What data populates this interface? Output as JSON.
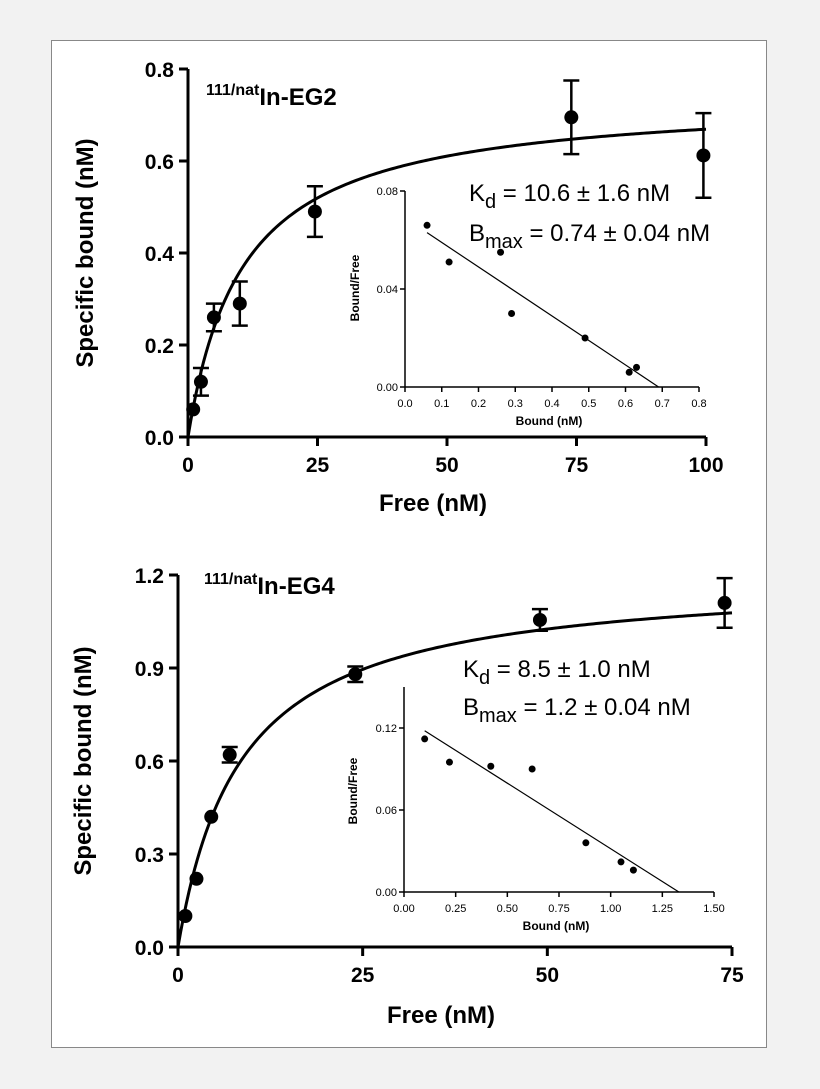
{
  "chart_data": [
    {
      "type": "scatter",
      "title": "In-EG2",
      "title_prefix": "111/nat",
      "xlabel": "Free (nM)",
      "ylabel": "Specific bound (nM)",
      "xlim": [
        0,
        100
      ],
      "ylim": [
        0,
        0.8
      ],
      "xticks": [
        "0",
        "25",
        "50",
        "75",
        "100"
      ],
      "yticks": [
        "0.0",
        "0.2",
        "0.4",
        "0.6",
        "0.8"
      ],
      "points": [
        {
          "x": 1,
          "y": 0.06,
          "err": 0.0
        },
        {
          "x": 2.5,
          "y": 0.12,
          "err": 0.03
        },
        {
          "x": 5,
          "y": 0.26,
          "err": 0.03
        },
        {
          "x": 10,
          "y": 0.29,
          "err": 0.048
        },
        {
          "x": 24.5,
          "y": 0.49,
          "err": 0.055
        },
        {
          "x": 74,
          "y": 0.695,
          "err": 0.08
        },
        {
          "x": 99.5,
          "y": 0.612,
          "err": 0.092
        }
      ],
      "fit": {
        "model": "one-site binding",
        "Kd": 10.6,
        "Bmax": 0.74
      },
      "annotation_kd": {
        "symbol": "K",
        "sub": "d",
        "text": " = 10.6 ± 1.6 nM"
      },
      "annotation_bmax": {
        "symbol": "B",
        "sub": "max",
        "text": " = 0.74 ± 0.04 nM"
      },
      "inset": {
        "type": "scatter",
        "xlabel": "Bound (nM)",
        "ylabel": "Bound/Free",
        "xlim": [
          0,
          0.8
        ],
        "ylim": [
          0,
          0.08
        ],
        "xticks": [
          "0.0",
          "0.1",
          "0.2",
          "0.3",
          "0.4",
          "0.5",
          "0.6",
          "0.7",
          "0.8"
        ],
        "yticks": [
          "0.00",
          "0.04",
          "0.08"
        ],
        "points": [
          {
            "x": 0.06,
            "y": 0.066
          },
          {
            "x": 0.12,
            "y": 0.051
          },
          {
            "x": 0.26,
            "y": 0.055
          },
          {
            "x": 0.29,
            "y": 0.03
          },
          {
            "x": 0.49,
            "y": 0.02
          },
          {
            "x": 0.61,
            "y": 0.006
          },
          {
            "x": 0.63,
            "y": 0.008
          }
        ],
        "line": [
          [
            0.06,
            0.063
          ],
          [
            0.69,
            0.0
          ]
        ]
      }
    },
    {
      "type": "scatter",
      "title": "In-EG4",
      "title_prefix": "111/nat",
      "xlabel": "Free (nM)",
      "ylabel": "Specific bound (nM)",
      "xlim": [
        0,
        75
      ],
      "ylim": [
        0,
        1.2
      ],
      "xticks": [
        "0",
        "25",
        "50",
        "75"
      ],
      "yticks": [
        "0.0",
        "0.3",
        "0.6",
        "0.9",
        "1.2"
      ],
      "points": [
        {
          "x": 1,
          "y": 0.1,
          "err": 0.0
        },
        {
          "x": 2.5,
          "y": 0.22,
          "err": 0.0
        },
        {
          "x": 4.5,
          "y": 0.42,
          "err": 0.0
        },
        {
          "x": 7,
          "y": 0.62,
          "err": 0.025
        },
        {
          "x": 24,
          "y": 0.88,
          "err": 0.025
        },
        {
          "x": 49,
          "y": 1.055,
          "err": 0.035
        },
        {
          "x": 74,
          "y": 1.11,
          "err": 0.08
        }
      ],
      "fit": {
        "model": "one-site binding",
        "Kd": 8.5,
        "Bmax": 1.2
      },
      "annotation_kd": {
        "symbol": "K",
        "sub": "d",
        "text": " = 8.5 ± 1.0 nM"
      },
      "annotation_bmax": {
        "symbol": "B",
        "sub": "max",
        "text": " = 1.2 ± 0.04 nM"
      },
      "inset": {
        "type": "scatter",
        "xlabel": "Bound (nM)",
        "ylabel": "Bound/Free",
        "xlim": [
          0,
          1.5
        ],
        "ylim": [
          0,
          0.15
        ],
        "xticks": [
          "0.00",
          "0.25",
          "0.50",
          "0.75",
          "1.00",
          "1.25",
          "1.50"
        ],
        "yticks": [
          "0.00",
          "0.06",
          "0.12"
        ],
        "points": [
          {
            "x": 0.1,
            "y": 0.112
          },
          {
            "x": 0.22,
            "y": 0.095
          },
          {
            "x": 0.42,
            "y": 0.092
          },
          {
            "x": 0.62,
            "y": 0.09
          },
          {
            "x": 0.88,
            "y": 0.036
          },
          {
            "x": 1.05,
            "y": 0.022
          },
          {
            "x": 1.11,
            "y": 0.016
          }
        ],
        "line": [
          [
            0.1,
            0.118
          ],
          [
            1.33,
            0.0
          ]
        ]
      }
    }
  ]
}
